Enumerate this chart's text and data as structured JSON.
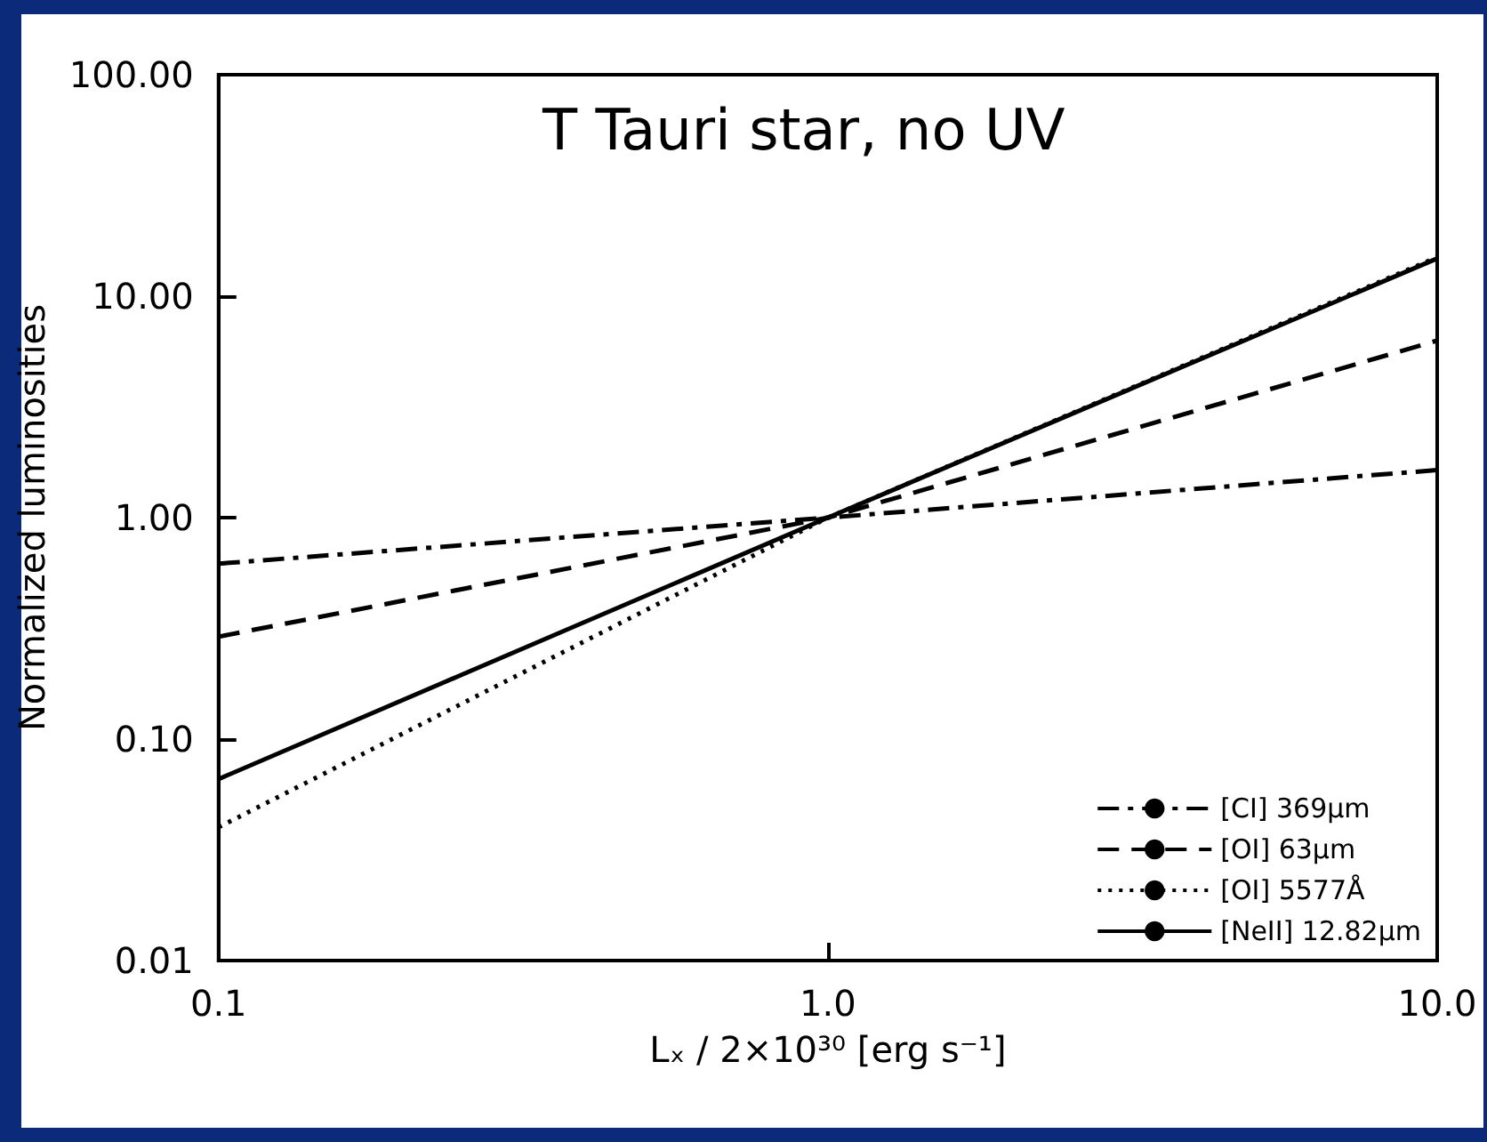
{
  "chart_data": {
    "type": "line",
    "title": "T Tauri star, no UV",
    "xlabel": "Lₓ / 2×10³⁰ [erg s⁻¹]",
    "ylabel": "Normalized luminosities",
    "x": [
      0.1,
      1,
      10
    ],
    "series": [
      {
        "name": "[CI] 369μm",
        "color": "#000000",
        "line_style": "dashdot",
        "values": [
          0.62,
          1,
          1.64
        ]
      },
      {
        "name": "[OI] 63μm",
        "color": "#000000",
        "line_style": "dashed",
        "values": [
          0.29,
          1,
          6.3
        ]
      },
      {
        "name": "[OI] 5577Å",
        "color": "#000000",
        "line_style": "dotted",
        "values": [
          0.04,
          1,
          15
        ]
      },
      {
        "name": "[NeII] 12.82μm",
        "color": "#000000",
        "line_style": "solid",
        "values": [
          0.066,
          1,
          14.8
        ]
      }
    ],
    "log": "xy",
    "xlim": [
      0.1,
      10
    ],
    "ylim": [
      0.01,
      100
    ],
    "xticks": [
      0.1,
      {
        "value": 1,
        "label": "1.0"
      },
      {
        "value": 10,
        "label": "10.0"
      }
    ],
    "yticks": [
      {
        "value": 0.01,
        "label": "0.01"
      },
      {
        "value": 0.1,
        "label": "0.10"
      },
      {
        "value": 1,
        "label": "1.00"
      },
      {
        "value": 10,
        "label": "10.00"
      },
      {
        "value": 100,
        "label": "100.00"
      }
    ],
    "grid": false,
    "legend": "bottom right",
    "marker": "none"
  }
}
